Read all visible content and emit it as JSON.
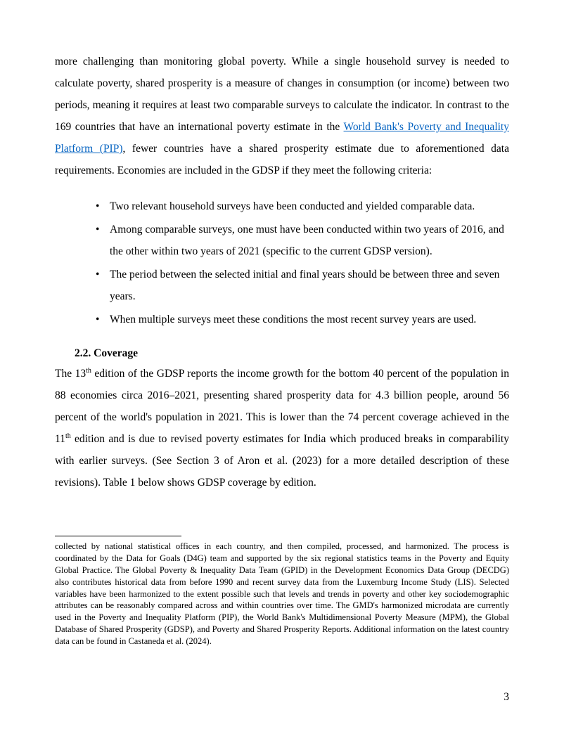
{
  "para1_part1": "more challenging than monitoring global poverty. While a single household survey is needed to calculate poverty, shared prosperity is a measure of changes in consumption (or income) between two periods, meaning it requires at least two comparable surveys to calculate the indicator. In contrast to the 169 countries that have an international poverty estimate in the ",
  "link1_text": "World Bank's Poverty and Inequality Platform (PIP)",
  "para1_part2": ", fewer countries have a shared prosperity estimate due to aforementioned data requirements. Economies are included in the GDSP if they meet the following criteria:",
  "bullets": [
    "Two relevant household surveys have been conducted and yielded comparable data.",
    "Among comparable surveys, one must have been conducted within two years of 2016, and the other within two years of 2021 (specific to the current GDSP version).",
    "The period between the selected initial and final years should be between three and seven years.",
    "When multiple surveys meet these conditions the most recent survey years are used."
  ],
  "section_heading": "2.2. Coverage",
  "para2_part1": "The 13",
  "para2_sup1": "th",
  "para2_part2": " edition of the GDSP reports the income growth for the bottom 40 percent of the population in 88 economies circa 2016–2021, presenting shared prosperity data for 4.3 billion people, around 56 percent of the world's population in 2021. This is lower than the 74 percent coverage achieved in the 11",
  "para2_sup2": "th",
  "para2_part3": " edition and is due to revised poverty estimates for India which produced breaks in comparability with earlier surveys. (See Section 3 of Aron et al. (2023) for a more detailed description of these revisions).  Table 1 below shows GDSP coverage by edition.",
  "footnote_text": "collected by national statistical offices in each country, and then compiled, processed, and harmonized. The process is coordinated by the Data for Goals (D4G) team and supported by the six regional statistics teams in the Poverty and Equity Global Practice. The Global Poverty & Inequality Data Team (GPID) in the Development Economics Data Group (DECDG) also contributes historical data from before 1990 and recent survey data from the Luxemburg Income Study (LIS). Selected variables have been harmonized to the extent possible such that levels and trends in poverty and other key sociodemographic attributes can be reasonably compared across and within countries over time. The GMD's harmonized microdata are currently used in the Poverty and Inequality Platform (PIP), the World Bank's Multidimensional Poverty Measure (MPM), the Global Database of Shared Prosperity (GDSP), and Poverty and Shared Prosperity Reports. Additional information on the latest country data can be found in Castaneda et al. (2024).",
  "page_number": "3"
}
